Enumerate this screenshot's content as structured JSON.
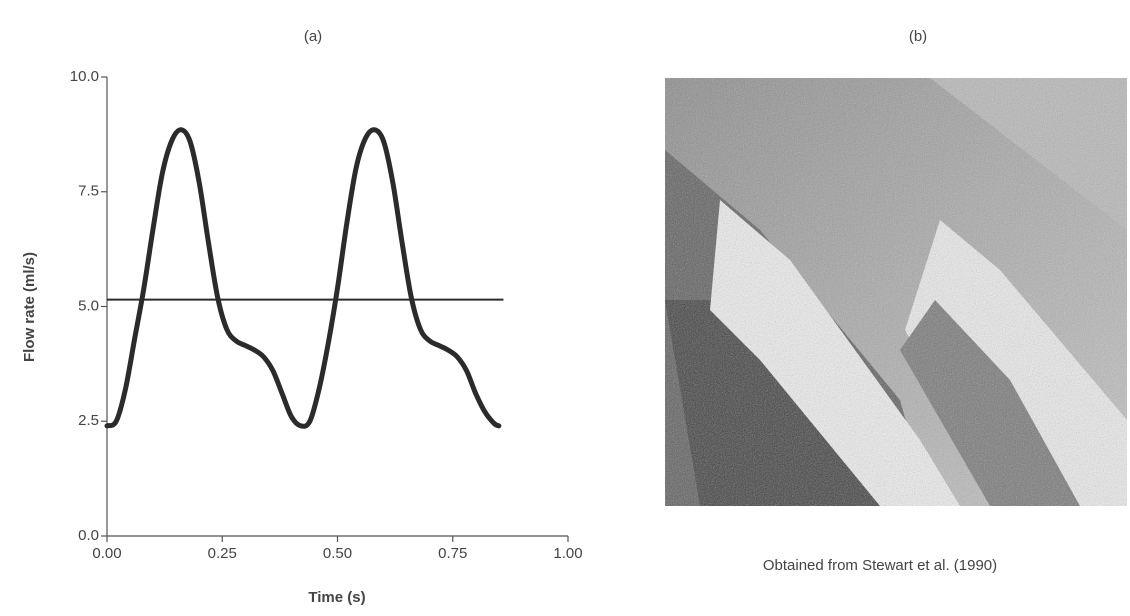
{
  "chart_data": {
    "type": "line",
    "title": "(a)",
    "xlabel": "Time (s)",
    "ylabel": "Flow rate (ml/s)",
    "x": [
      0.0,
      0.02,
      0.04,
      0.06,
      0.08,
      0.1,
      0.12,
      0.14,
      0.16,
      0.18,
      0.2,
      0.22,
      0.24,
      0.26,
      0.28,
      0.3,
      0.32,
      0.34,
      0.36,
      0.38,
      0.4,
      0.42,
      0.44,
      0.46,
      0.48,
      0.5,
      0.52,
      0.54,
      0.56,
      0.58,
      0.6,
      0.62,
      0.64,
      0.66,
      0.68,
      0.7,
      0.72,
      0.74,
      0.76,
      0.78,
      0.8,
      0.82,
      0.84,
      0.85
    ],
    "values": [
      2.4,
      2.5,
      3.2,
      4.3,
      5.4,
      6.7,
      7.9,
      8.6,
      8.85,
      8.6,
      7.7,
      6.4,
      5.2,
      4.5,
      4.25,
      4.15,
      4.05,
      3.9,
      3.6,
      3.1,
      2.6,
      2.4,
      2.5,
      3.2,
      4.2,
      5.4,
      6.8,
      8.0,
      8.65,
      8.85,
      8.6,
      7.7,
      6.4,
      5.2,
      4.5,
      4.25,
      4.15,
      4.05,
      3.9,
      3.6,
      3.1,
      2.7,
      2.45,
      2.4
    ],
    "color": "#2b2b2b",
    "reference_line": {
      "x": [
        0,
        0.86
      ],
      "values": [
        5.15,
        5.15
      ],
      "color": "#2b2b2b"
    },
    "xlim": [
      0,
      1
    ],
    "ylim": [
      0,
      10
    ],
    "xticks": [
      {
        "value": 0,
        "label": "0.00"
      },
      0.25,
      {
        "value": 0.5,
        "label": "0.50"
      },
      0.75,
      {
        "value": 1,
        "label": "1.00"
      }
    ],
    "yticks": [
      {
        "value": 0,
        "label": "0.0"
      },
      2.5,
      {
        "value": 5,
        "label": "5.0"
      },
      7.5,
      {
        "value": 10,
        "label": "10.0"
      }
    ],
    "grid": false
  },
  "panel_b": {
    "title": "(b)",
    "caption": "Obtained from Stewart et al. (1990)"
  }
}
